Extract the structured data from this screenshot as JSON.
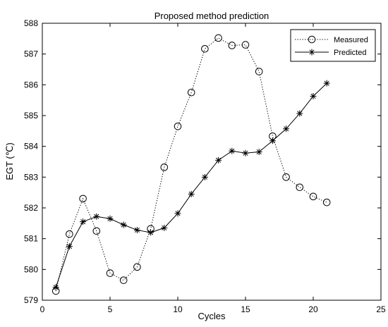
{
  "chart_data": {
    "type": "line",
    "title": "Proposed method prediction",
    "xlabel": "Cycles",
    "ylabel": "EGT (℃)",
    "xlim": [
      0,
      25
    ],
    "ylim": [
      579,
      588
    ],
    "xticks": [
      "0",
      "5",
      "10",
      "15",
      "20",
      "25"
    ],
    "yticks": [
      "579",
      "580",
      "581",
      "582",
      "583",
      "584",
      "585",
      "586",
      "587",
      "588"
    ],
    "grid": false,
    "legend_position": "top-right",
    "series": [
      {
        "name": "Measured",
        "style": "dotted",
        "marker": "circle",
        "color": "#000000",
        "x": [
          1,
          2,
          3,
          4,
          5,
          6,
          7,
          8,
          9,
          10,
          11,
          12,
          13,
          14,
          15,
          16,
          17,
          18,
          19,
          20,
          21
        ],
        "y": [
          579.3,
          581.15,
          582.3,
          581.25,
          579.88,
          579.65,
          580.08,
          581.32,
          583.32,
          584.65,
          585.75,
          587.17,
          587.52,
          587.28,
          587.3,
          586.43,
          584.33,
          583.0,
          582.67,
          582.37,
          582.18
        ]
      },
      {
        "name": "Predicted",
        "style": "solid",
        "marker": "asterisk",
        "color": "#000000",
        "x": [
          1,
          2,
          3,
          4,
          5,
          6,
          7,
          8,
          9,
          10,
          11,
          12,
          13,
          14,
          15,
          16,
          17,
          18,
          19,
          20,
          21
        ],
        "y": [
          579.42,
          580.75,
          581.55,
          581.72,
          581.65,
          581.45,
          581.28,
          581.2,
          581.35,
          581.82,
          582.45,
          583.0,
          583.55,
          583.85,
          583.78,
          583.82,
          584.18,
          584.57,
          585.07,
          585.63,
          586.05
        ]
      }
    ]
  }
}
